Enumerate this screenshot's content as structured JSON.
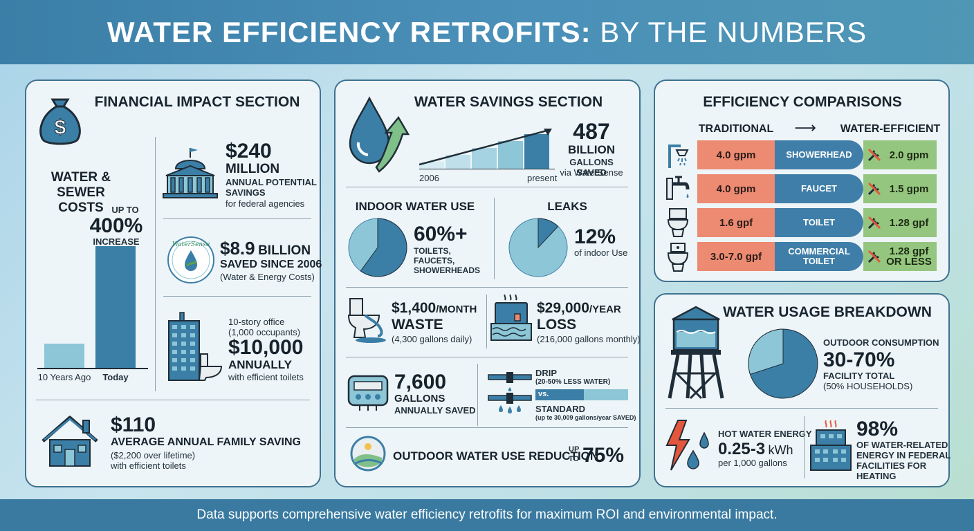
{
  "header": {
    "title_bold": "WATER EFFICIENCY RETROFITS:",
    "title_light": "BY THE NUMBERS"
  },
  "financial": {
    "title": "FINANCIAL IMPACT SECTION",
    "costs_label": "WATER & SEWER COSTS",
    "increase_prefix": "UP TO",
    "increase_value": "400%",
    "increase_suffix": "INCREASE",
    "bar_labels": [
      "10 Years Ago",
      "Today"
    ],
    "bar_values": [
      1,
      5
    ],
    "federal": {
      "value": "$240",
      "unit": "MILLION",
      "line1": "ANNUAL POTENTIAL",
      "line2": "SAVINGS",
      "sub": "for federal agencies"
    },
    "watersense": {
      "value": "$8.9",
      "unit": "BILLION",
      "line1": "SAVED SINCE 2006",
      "sub": "(Water & Energy Costs)",
      "logo_text": "WaterSense"
    },
    "office": {
      "line1": "10-story office",
      "line2": "(1,000 occupants)",
      "value": "$10,000",
      "unit": "ANNUALLY",
      "sub": "with efficient toilets"
    },
    "family": {
      "value": "$110",
      "line1": "AVERAGE ANNUAL FAMILY SAVING",
      "sub1": "($2,200 over lifetime)",
      "sub2": "with efficient toilets"
    }
  },
  "savings": {
    "title": "WATER SAVINGS SECTION",
    "axis_start": "2006",
    "axis_end": "present",
    "value": "487",
    "unit": "BILLION",
    "line1": "GALLONS SAVED",
    "sub": "via WaterSense",
    "indoor": {
      "title": "INDOOR WATER USE",
      "value": "60%+",
      "lines": [
        "TOILETS,",
        "FAUCETS,",
        "SHOWERHEADS"
      ],
      "share": 0.6
    },
    "leaks": {
      "title": "LEAKS",
      "value": "12%",
      "sub": "of indoor Use",
      "share": 0.12
    },
    "toilet_waste": {
      "value": "$1,400",
      "unit": "/MONTH",
      "label": "WASTE",
      "sub": "(4,300 gallons daily)"
    },
    "year_loss": {
      "value": "$29,000",
      "unit": "/YEAR",
      "label": "LOSS",
      "sub": "(216,000 gallons monthly)"
    },
    "meter": {
      "value": "7,600",
      "line1": "GALLONS",
      "line2": "ANNUALLY SAVED"
    },
    "drip": {
      "title": "DRIP",
      "drip_sub": "(20-50% LESS WATER)",
      "vs": "vs.",
      "standard": "STANDARD",
      "standard_sub": "(up te 30,009 gallons/year SAVED)"
    },
    "outdoor": {
      "label": "OUTDOOR WATER USE REDUCTION",
      "up": "UP",
      "to": "TO",
      "value": "75%"
    }
  },
  "comparisons": {
    "title": "EFFICIENCY COMPARISONS",
    "col_left": "TRADITIONAL",
    "arrow": "⟶",
    "col_right": "WATER-EFFICIENT",
    "rows": [
      {
        "traditional": "4.0 gpm",
        "fixture": "SHOWERHEAD",
        "efficient": "2.0 gpm"
      },
      {
        "traditional": "4.0 gpm",
        "fixture": "FAUCET",
        "efficient": "1.5 gpm"
      },
      {
        "traditional": "1.6 gpf",
        "fixture": "TOILET",
        "efficient": "1.28 gpf"
      },
      {
        "traditional": "3.0-7.0 gpf",
        "fixture": "COMMERCIAL TOILET",
        "efficient": "1.28 gpf OR LESS"
      }
    ]
  },
  "usage": {
    "title": "WATER USAGE BREAKDOWN",
    "outdoor_label": "OUTDOOR CONSUMPTION",
    "outdoor_value": "30-70%",
    "outdoor_sub": "FACILITY TOTAL",
    "outdoor_note": "(50% HOUSEHOLDS)",
    "pie_share": 0.3,
    "hot_label": "HOT WATER ENERGY",
    "hot_value": "0.25-3",
    "hot_unit": "kWh",
    "hot_sub": "per 1,000 gallons",
    "heat_value": "98%",
    "heat_lines": [
      "OF WATER-RELATED",
      "ENERGY IN FEDERAL",
      "FACILITIES FOR",
      "HEATING"
    ]
  },
  "footer": "Data supports comprehensive water efficiency retrofits for maximum ROI and environmental impact.",
  "colors": {
    "primary": "#3b7fa7",
    "light_blue": "#8dc6d6",
    "orange": "#ec8a72",
    "green": "#95c67f",
    "dark": "#1f2d38"
  }
}
